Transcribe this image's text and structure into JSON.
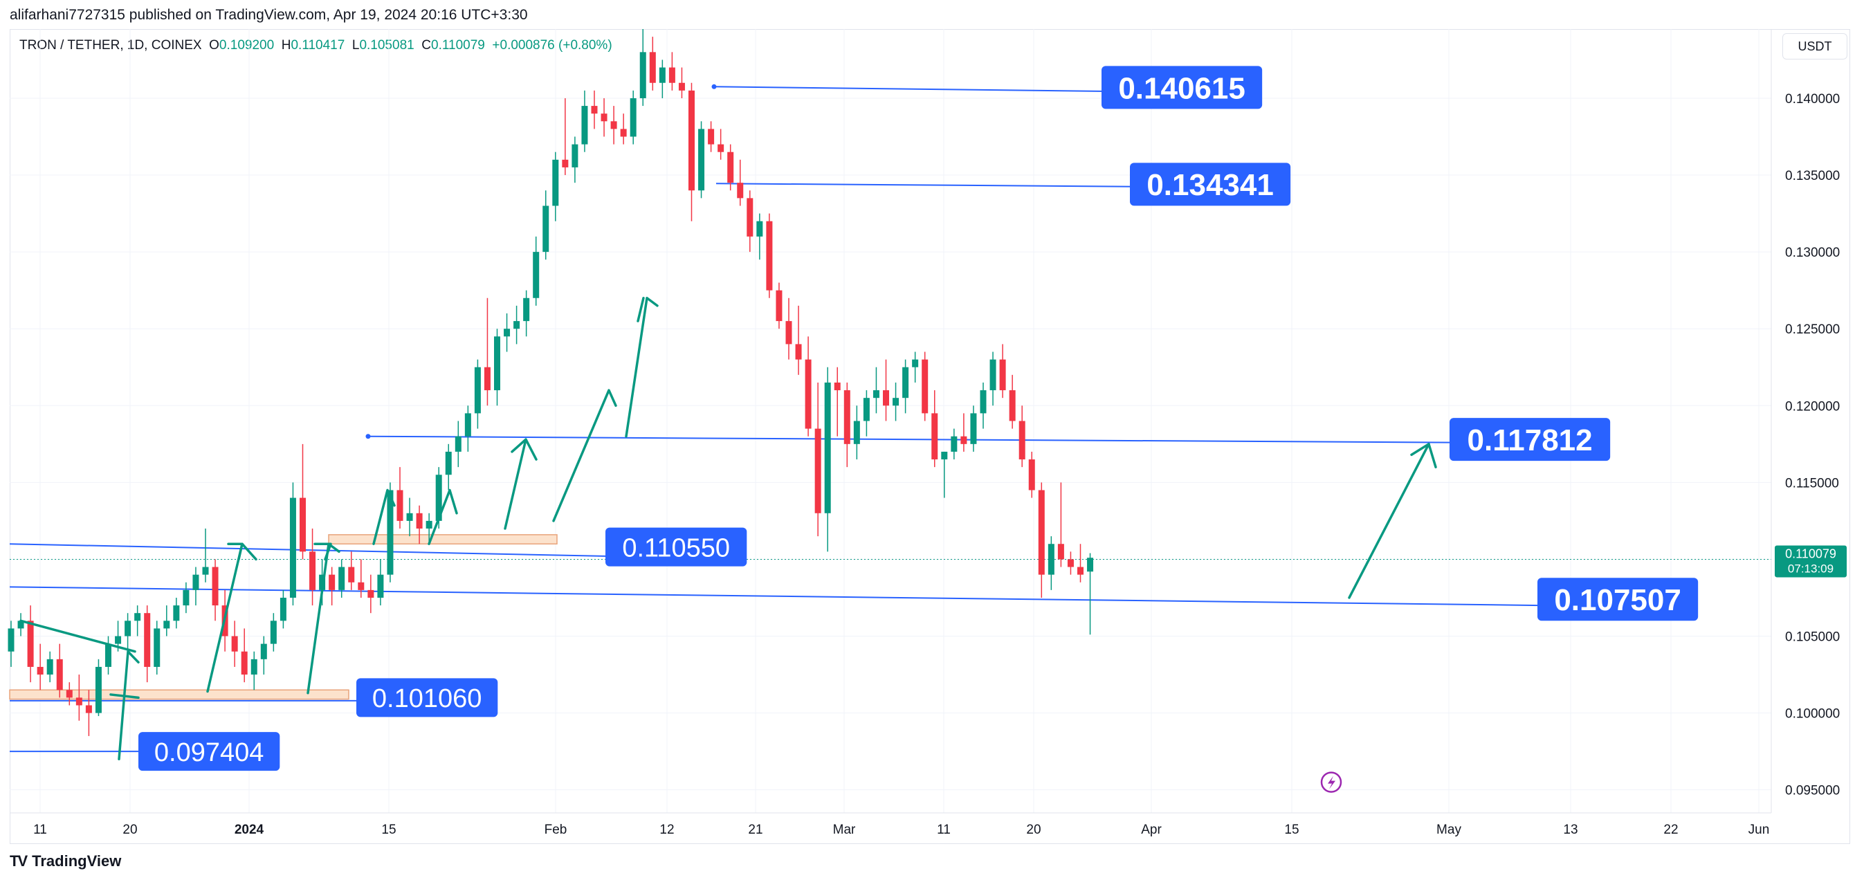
{
  "header": {
    "published_by": "alifarhani7727315 published on TradingView.com, Apr 19, 2024 20:16 UTC+3:30"
  },
  "legend": {
    "symbol": "TRON / TETHER, 1D, COINEX",
    "o_label": "O",
    "o_value": "0.109200",
    "h_label": "H",
    "h_value": "0.110417",
    "l_label": "L",
    "l_value": "0.105081",
    "c_label": "C",
    "c_value": "0.110079",
    "change": "+0.000876 (+0.80%)"
  },
  "toolbar": {
    "currency": "USDT"
  },
  "footer": {
    "brand": "TradingView",
    "logo": "TV"
  },
  "price_marker": {
    "price": "0.110079",
    "countdown": "07:13:09"
  },
  "colors": {
    "up": "#089981",
    "down": "#f23645",
    "line": "#2962ff",
    "label_bg": "#2962ff",
    "zone_fill": "#fce2cc",
    "zone_stroke": "#e8a37a",
    "arrow": "#089981"
  },
  "chart_data": {
    "type": "candlestick",
    "title": "TRON / TETHER, 1D, COINEX",
    "ylim": [
      0.0935,
      0.1445
    ],
    "y_ticks": [
      "0.140000",
      "0.135000",
      "0.130000",
      "0.125000",
      "0.120000",
      "0.115000",
      "0.110000",
      "0.105000",
      "0.100000",
      "0.095000"
    ],
    "x_ticks": [
      "11",
      "20",
      "2024",
      "15",
      "Feb",
      "12",
      "21",
      "Mar",
      "11",
      "20",
      "Apr",
      "15",
      "May",
      "13",
      "22",
      "Jun"
    ],
    "candles": [
      [
        0.104,
        0.106,
        0.103,
        0.1055
      ],
      [
        0.1055,
        0.1065,
        0.105,
        0.106
      ],
      [
        0.106,
        0.107,
        0.102,
        0.103
      ],
      [
        0.103,
        0.1045,
        0.1015,
        0.1025
      ],
      [
        0.1025,
        0.104,
        0.102,
        0.1035
      ],
      [
        0.1035,
        0.1045,
        0.101,
        0.1015
      ],
      [
        0.1015,
        0.102,
        0.1005,
        0.101
      ],
      [
        0.101,
        0.1025,
        0.0995,
        0.1005
      ],
      [
        0.1005,
        0.1015,
        0.0985,
        0.1
      ],
      [
        0.1,
        0.1035,
        0.0998,
        0.103
      ],
      [
        0.103,
        0.105,
        0.1025,
        0.1045
      ],
      [
        0.1045,
        0.106,
        0.104,
        0.105
      ],
      [
        0.105,
        0.1065,
        0.104,
        0.106
      ],
      [
        0.106,
        0.107,
        0.105,
        0.1065
      ],
      [
        0.1065,
        0.107,
        0.102,
        0.103
      ],
      [
        0.103,
        0.106,
        0.1025,
        0.1055
      ],
      [
        0.1055,
        0.107,
        0.105,
        0.106
      ],
      [
        0.106,
        0.1075,
        0.1055,
        0.107
      ],
      [
        0.107,
        0.1085,
        0.1065,
        0.108
      ],
      [
        0.108,
        0.1095,
        0.107,
        0.109
      ],
      [
        0.109,
        0.112,
        0.1085,
        0.1095
      ],
      [
        0.1095,
        0.11,
        0.106,
        0.107
      ],
      [
        0.107,
        0.108,
        0.104,
        0.105
      ],
      [
        0.105,
        0.106,
        0.103,
        0.104
      ],
      [
        0.104,
        0.1055,
        0.102,
        0.1025
      ],
      [
        0.1025,
        0.104,
        0.1015,
        0.1035
      ],
      [
        0.1035,
        0.105,
        0.1025,
        0.1045
      ],
      [
        0.1045,
        0.1065,
        0.104,
        0.106
      ],
      [
        0.106,
        0.108,
        0.1055,
        0.1075
      ],
      [
        0.1075,
        0.115,
        0.107,
        0.114
      ],
      [
        0.114,
        0.1175,
        0.11,
        0.1105
      ],
      [
        0.1105,
        0.112,
        0.107,
        0.108
      ],
      [
        0.108,
        0.11,
        0.107,
        0.109
      ],
      [
        0.109,
        0.1095,
        0.107,
        0.108
      ],
      [
        0.108,
        0.11,
        0.1075,
        0.1095
      ],
      [
        0.1095,
        0.1105,
        0.108,
        0.1085
      ],
      [
        0.1085,
        0.11,
        0.1075,
        0.108
      ],
      [
        0.108,
        0.109,
        0.1065,
        0.1075
      ],
      [
        0.1075,
        0.11,
        0.107,
        0.109
      ],
      [
        0.109,
        0.115,
        0.1085,
        0.1145
      ],
      [
        0.1145,
        0.116,
        0.112,
        0.1125
      ],
      [
        0.1125,
        0.114,
        0.1115,
        0.113
      ],
      [
        0.113,
        0.1135,
        0.111,
        0.112
      ],
      [
        0.112,
        0.113,
        0.111,
        0.1125
      ],
      [
        0.1125,
        0.116,
        0.112,
        0.1155
      ],
      [
        0.1155,
        0.1175,
        0.1145,
        0.117
      ],
      [
        0.117,
        0.119,
        0.116,
        0.118
      ],
      [
        0.118,
        0.12,
        0.117,
        0.1195
      ],
      [
        0.1195,
        0.123,
        0.1185,
        0.1225
      ],
      [
        0.1225,
        0.127,
        0.12,
        0.121
      ],
      [
        0.121,
        0.125,
        0.12,
        0.1245
      ],
      [
        0.1245,
        0.126,
        0.1235,
        0.125
      ],
      [
        0.125,
        0.1265,
        0.124,
        0.1255
      ],
      [
        0.1255,
        0.1275,
        0.1245,
        0.127
      ],
      [
        0.127,
        0.131,
        0.1265,
        0.13
      ],
      [
        0.13,
        0.134,
        0.1295,
        0.133
      ],
      [
        0.133,
        0.1365,
        0.132,
        0.136
      ],
      [
        0.136,
        0.14,
        0.135,
        0.1355
      ],
      [
        0.1355,
        0.1375,
        0.1345,
        0.137
      ],
      [
        0.137,
        0.1405,
        0.1365,
        0.1395
      ],
      [
        0.1395,
        0.1405,
        0.138,
        0.139
      ],
      [
        0.139,
        0.14,
        0.1375,
        0.1385
      ],
      [
        0.1385,
        0.1395,
        0.137,
        0.138
      ],
      [
        0.138,
        0.139,
        0.137,
        0.1375
      ],
      [
        0.1375,
        0.1405,
        0.137,
        0.14
      ],
      [
        0.14,
        0.1445,
        0.1395,
        0.143
      ],
      [
        0.143,
        0.144,
        0.1405,
        0.141
      ],
      [
        0.141,
        0.1425,
        0.14,
        0.142
      ],
      [
        0.142,
        0.143,
        0.1405,
        0.141
      ],
      [
        0.141,
        0.142,
        0.14,
        0.1405
      ],
      [
        0.1405,
        0.141,
        0.132,
        0.134
      ],
      [
        0.134,
        0.1385,
        0.1335,
        0.138
      ],
      [
        0.138,
        0.1385,
        0.1365,
        0.137
      ],
      [
        0.137,
        0.138,
        0.136,
        0.1365
      ],
      [
        0.1365,
        0.137,
        0.134,
        0.1345
      ],
      [
        0.1345,
        0.136,
        0.133,
        0.1335
      ],
      [
        0.1335,
        0.134,
        0.13,
        0.131
      ],
      [
        0.131,
        0.1325,
        0.1295,
        0.132
      ],
      [
        0.132,
        0.1325,
        0.127,
        0.1275
      ],
      [
        0.1275,
        0.128,
        0.125,
        0.1255
      ],
      [
        0.1255,
        0.127,
        0.123,
        0.124
      ],
      [
        0.124,
        0.1265,
        0.122,
        0.123
      ],
      [
        0.123,
        0.1245,
        0.118,
        0.1185
      ],
      [
        0.1185,
        0.1215,
        0.1115,
        0.113
      ],
      [
        0.113,
        0.1225,
        0.1105,
        0.1215
      ],
      [
        0.1215,
        0.1225,
        0.118,
        0.121
      ],
      [
        0.121,
        0.1215,
        0.116,
        0.1175
      ],
      [
        0.1175,
        0.12,
        0.1165,
        0.119
      ],
      [
        0.119,
        0.121,
        0.118,
        0.1205
      ],
      [
        0.1205,
        0.1225,
        0.1195,
        0.121
      ],
      [
        0.121,
        0.123,
        0.119,
        0.12
      ],
      [
        0.12,
        0.1215,
        0.119,
        0.1205
      ],
      [
        0.1205,
        0.123,
        0.1195,
        0.1225
      ],
      [
        0.1225,
        0.1235,
        0.1215,
        0.123
      ],
      [
        0.123,
        0.1235,
        0.119,
        0.1195
      ],
      [
        0.1195,
        0.121,
        0.116,
        0.1165
      ],
      [
        0.1165,
        0.117,
        0.114,
        0.117
      ],
      [
        0.117,
        0.1185,
        0.1165,
        0.118
      ],
      [
        0.118,
        0.1195,
        0.117,
        0.1175
      ],
      [
        0.1175,
        0.12,
        0.117,
        0.1195
      ],
      [
        0.1195,
        0.1215,
        0.1185,
        0.121
      ],
      [
        0.121,
        0.1235,
        0.12,
        0.123
      ],
      [
        0.123,
        0.124,
        0.1205,
        0.121
      ],
      [
        0.121,
        0.122,
        0.1185,
        0.119
      ],
      [
        0.119,
        0.12,
        0.116,
        0.1165
      ],
      [
        0.1165,
        0.117,
        0.114,
        0.1145
      ],
      [
        0.1145,
        0.115,
        0.1075,
        0.109
      ],
      [
        0.109,
        0.1115,
        0.108,
        0.111
      ],
      [
        0.111,
        0.115,
        0.1095,
        0.11
      ],
      [
        0.11,
        0.1105,
        0.109,
        0.1095
      ],
      [
        0.1095,
        0.111,
        0.1085,
        0.109
      ],
      [
        0.1092,
        0.1104,
        0.1051,
        0.1101
      ]
    ],
    "levels": [
      "0.140615",
      "0.134341",
      "0.117812",
      "0.110550",
      "0.107507",
      "0.101060",
      "0.097404"
    ]
  }
}
